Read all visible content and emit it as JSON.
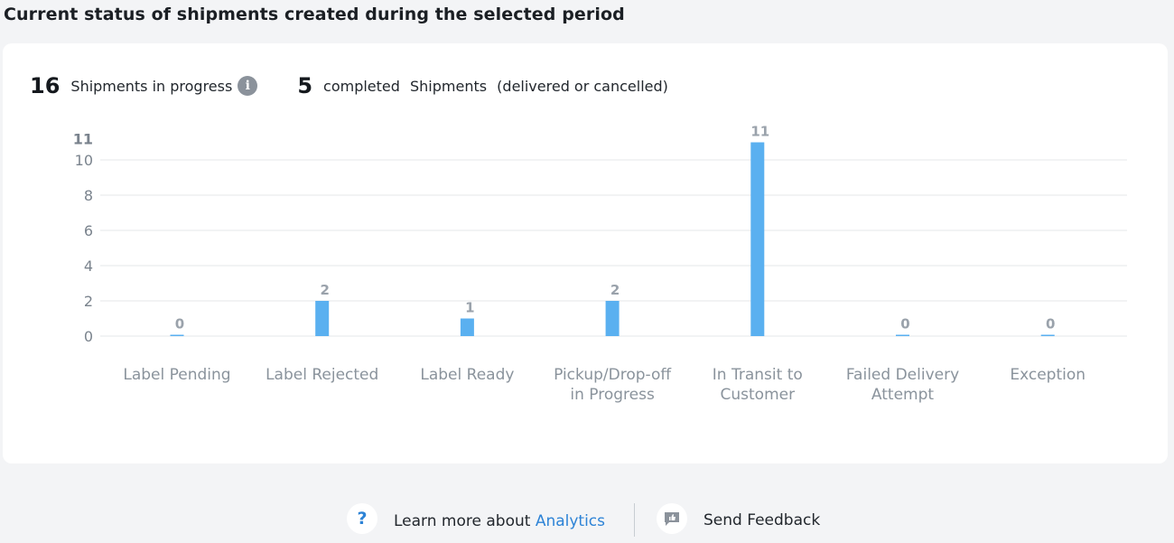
{
  "page": {
    "title": "Current status of shipments created during the selected period"
  },
  "stats": {
    "in_progress_count": "16",
    "in_progress_label": "Shipments in progress",
    "info_icon": "info-icon",
    "completed_count": "5",
    "completed_word": "completed",
    "completed_shipments": "Shipments",
    "completed_note": "(delivered or cancelled)"
  },
  "chart_data": {
    "type": "bar",
    "title": "",
    "xlabel": "",
    "ylabel": "",
    "categories": [
      [
        "Label Pending"
      ],
      [
        "Label Rejected"
      ],
      [
        "Label Ready"
      ],
      [
        "Pickup/Drop-off",
        "in Progress"
      ],
      [
        "In Transit to",
        "Customer"
      ],
      [
        "Failed Delivery",
        "Attempt"
      ],
      [
        "Exception"
      ]
    ],
    "values": [
      0,
      2,
      1,
      2,
      11,
      0,
      0
    ],
    "y_ticks": [
      0,
      2,
      4,
      6,
      8,
      10
    ],
    "y_max_label": "11",
    "ylim": [
      0,
      11
    ],
    "grid": true,
    "bar_color": "#5ab0f0",
    "grid_color": "#e4e7ea"
  },
  "footer": {
    "help_icon": "question-icon",
    "help_glyph": "?",
    "learn_prefix": "Learn more about ",
    "learn_link": "Analytics",
    "feedback_icon": "feedback-icon",
    "feedback_label": "Send Feedback"
  }
}
